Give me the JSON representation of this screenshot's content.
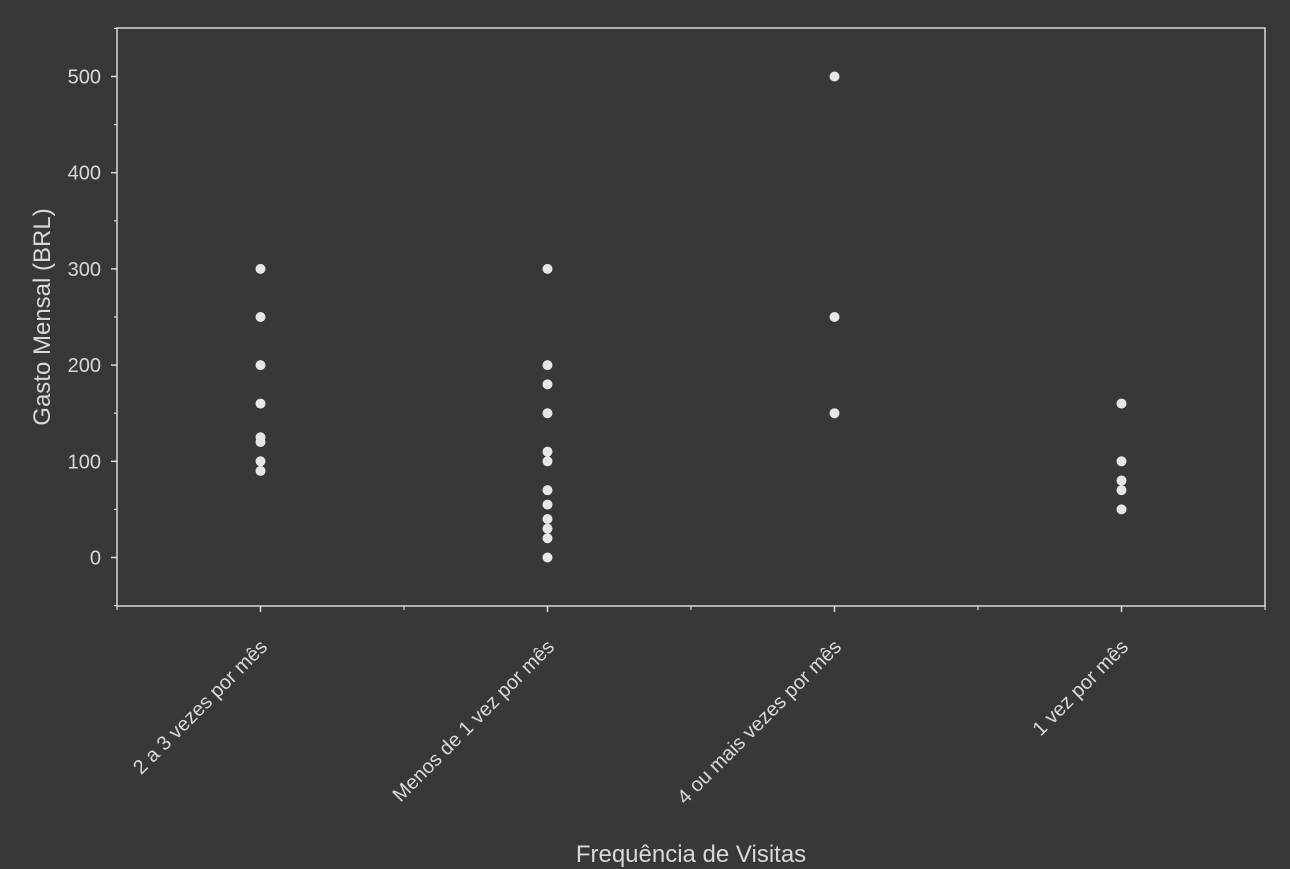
{
  "chart_data": {
    "type": "scatter",
    "title": "",
    "xlabel": "Frequência de Visitas",
    "ylabel": "Gasto Mensal (BRL)",
    "categories": [
      "2 a 3 vezes por mês",
      "Menos de 1 vez por mês",
      "4 ou mais vezes por mês",
      "1 vez por mês"
    ],
    "ylim": [
      -50,
      550
    ],
    "yticks": [
      0,
      100,
      200,
      300,
      400,
      500
    ],
    "grid": false,
    "legend": "none",
    "colors": {
      "background": "#383838",
      "axis": "#d8d8d8",
      "text": "#d8d8d8",
      "point": "#e6e6e6"
    },
    "points": [
      {
        "x": "2 a 3 vezes por mês",
        "y": 300
      },
      {
        "x": "2 a 3 vezes por mês",
        "y": 250
      },
      {
        "x": "2 a 3 vezes por mês",
        "y": 200
      },
      {
        "x": "2 a 3 vezes por mês",
        "y": 160
      },
      {
        "x": "2 a 3 vezes por mês",
        "y": 125
      },
      {
        "x": "2 a 3 vezes por mês",
        "y": 120
      },
      {
        "x": "2 a 3 vezes por mês",
        "y": 100
      },
      {
        "x": "2 a 3 vezes por mês",
        "y": 90
      },
      {
        "x": "Menos de 1 vez por mês",
        "y": 300
      },
      {
        "x": "Menos de 1 vez por mês",
        "y": 200
      },
      {
        "x": "Menos de 1 vez por mês",
        "y": 180
      },
      {
        "x": "Menos de 1 vez por mês",
        "y": 150
      },
      {
        "x": "Menos de 1 vez por mês",
        "y": 110
      },
      {
        "x": "Menos de 1 vez por mês",
        "y": 100
      },
      {
        "x": "Menos de 1 vez por mês",
        "y": 70
      },
      {
        "x": "Menos de 1 vez por mês",
        "y": 55
      },
      {
        "x": "Menos de 1 vez por mês",
        "y": 40
      },
      {
        "x": "Menos de 1 vez por mês",
        "y": 30
      },
      {
        "x": "Menos de 1 vez por mês",
        "y": 20
      },
      {
        "x": "Menos de 1 vez por mês",
        "y": 0
      },
      {
        "x": "4 ou mais vezes por mês",
        "y": 500
      },
      {
        "x": "4 ou mais vezes por mês",
        "y": 250
      },
      {
        "x": "4 ou mais vezes por mês",
        "y": 150
      },
      {
        "x": "1 vez por mês",
        "y": 160
      },
      {
        "x": "1 vez por mês",
        "y": 100
      },
      {
        "x": "1 vez por mês",
        "y": 80
      },
      {
        "x": "1 vez por mês",
        "y": 70
      },
      {
        "x": "1 vez por mês",
        "y": 50
      }
    ]
  }
}
